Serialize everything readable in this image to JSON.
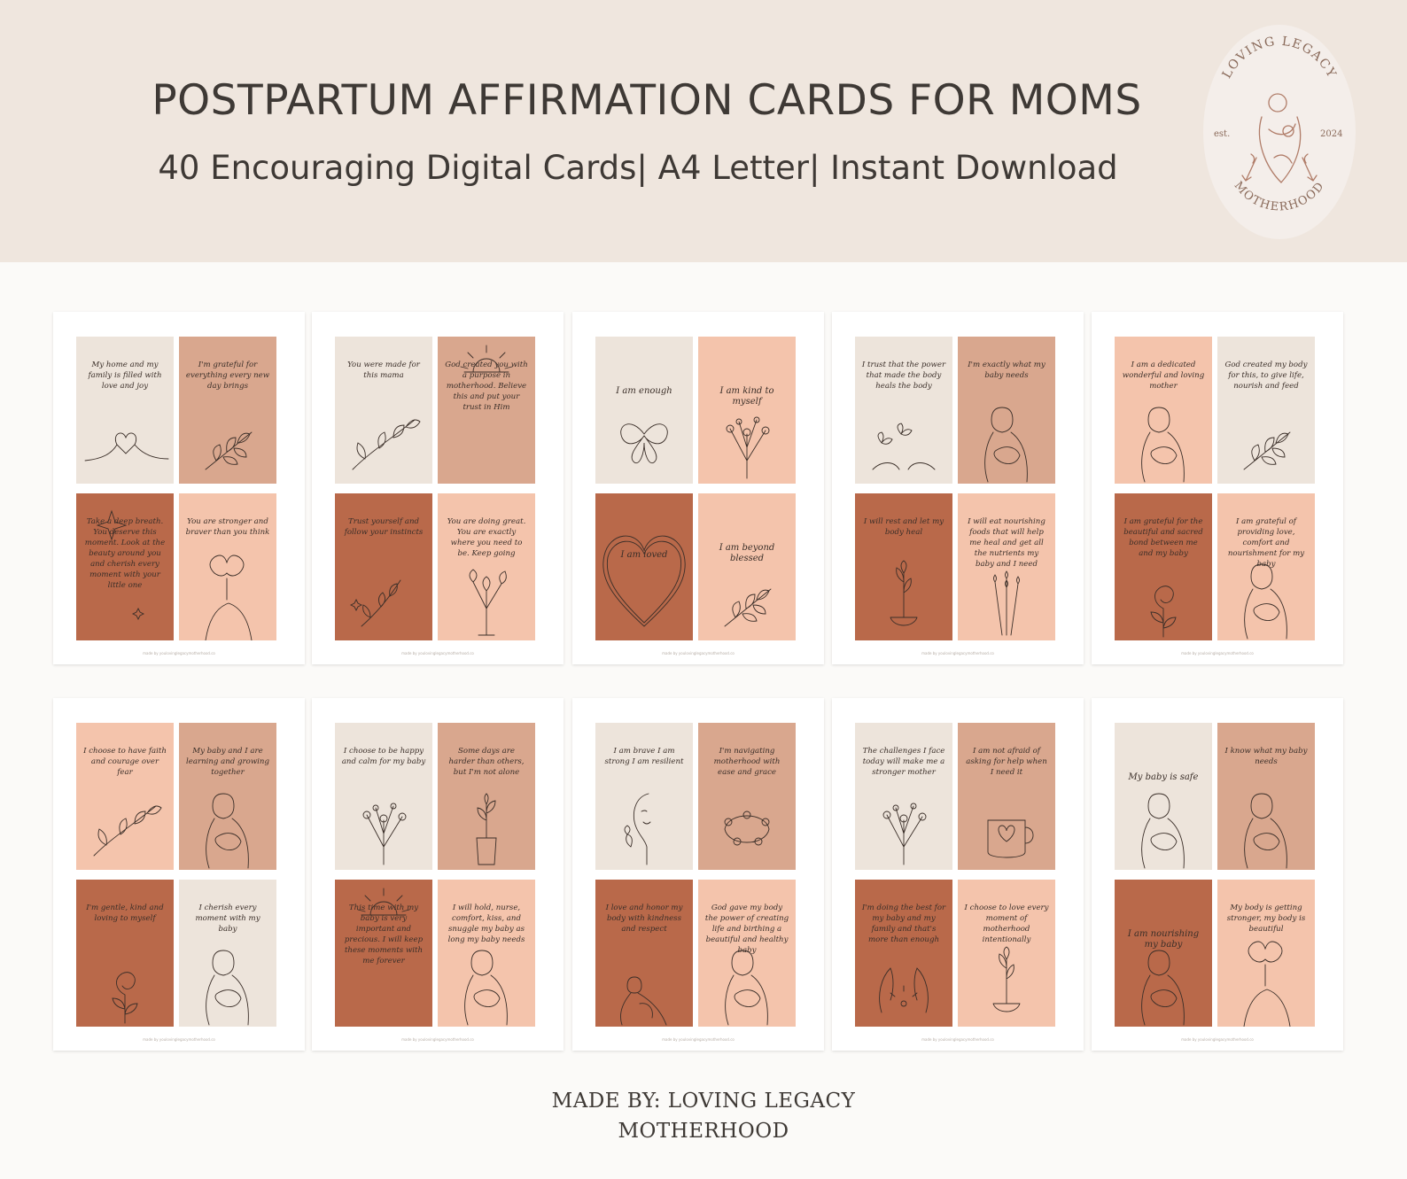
{
  "header": {
    "title": "POSTPARTUM AFFIRMATION CARDS FOR MOMS",
    "subtitle": "40 Encouraging Digital Cards| A4 Letter| Instant Download"
  },
  "logo": {
    "top_text": "LOVING LEGACY",
    "bottom_text": "MOTHERHOOD",
    "left_text": "est.",
    "right_text": "2024"
  },
  "colors": {
    "cream": "#ede4db",
    "tan": "#d9a78e",
    "peach": "#f4c4ac",
    "terracotta": "#b9694a"
  },
  "sheets": [
    {
      "cards": [
        {
          "text": "My home and my family is filled with love and joy",
          "color": "cream",
          "icon": "heart-line-icon"
        },
        {
          "text": "I'm grateful for everything every new day brings",
          "color": "tan",
          "icon": "leaf-branch-icon"
        },
        {
          "text": "Take a deep breath. You deserve this moment. Look at the beauty around you and cherish every moment with your little one",
          "color": "terracotta",
          "icon": "sparkle-icon"
        },
        {
          "text": "You are stronger and braver than you think",
          "color": "peach",
          "icon": "woman-flower-icon"
        }
      ]
    },
    {
      "cards": [
        {
          "text": "You were made for this mama",
          "color": "cream",
          "icon": "branch-icon"
        },
        {
          "text": "God created you with a purpose in motherhood. Believe this and put your trust in Him",
          "color": "tan",
          "icon": "sun-icon"
        },
        {
          "text": "Trust yourself and follow your instincts",
          "color": "terracotta",
          "icon": "sprig-icon"
        },
        {
          "text": "You are doing great. You are exactly where you need to be. Keep going",
          "color": "peach",
          "icon": "flower-bouquet-icon"
        }
      ]
    },
    {
      "cards": [
        {
          "text": "I am enough",
          "color": "cream",
          "icon": "butterfly-icon"
        },
        {
          "text": "I am kind to myself",
          "color": "peach",
          "icon": "wildflower-icon"
        },
        {
          "text": "I am loved",
          "color": "terracotta",
          "icon": "heart-outline-icon"
        },
        {
          "text": "I am beyond blessed",
          "color": "peach",
          "icon": "leaf-branch-icon"
        }
      ]
    },
    {
      "cards": [
        {
          "text": "I trust that the power that made the body heals the body",
          "color": "cream",
          "icon": "butterflies-icon"
        },
        {
          "text": "I'm exactly what my baby needs",
          "color": "tan",
          "icon": "mother-baby-icon"
        },
        {
          "text": "I will rest and let my body heal",
          "color": "terracotta",
          "icon": "hand-flower-icon"
        },
        {
          "text": "I will eat nourishing foods that will help me heal and get all the nutrients my baby and I need",
          "color": "peach",
          "icon": "lavender-icon"
        }
      ]
    },
    {
      "cards": [
        {
          "text": "I am a dedicated wonderful and loving mother",
          "color": "peach",
          "icon": "mother-baby-icon"
        },
        {
          "text": "God created my body for this, to give life, nourish and feed",
          "color": "cream",
          "icon": "leaf-branch-icon"
        },
        {
          "text": "I am grateful for the beautiful and sacred bond between me and my baby",
          "color": "terracotta",
          "icon": "rose-icon"
        },
        {
          "text": "I am grateful of providing love, comfort and nourishment for my baby",
          "color": "peach",
          "icon": "mother-baby-icon"
        }
      ]
    },
    {
      "cards": [
        {
          "text": "I choose to have faith and courage over fear",
          "color": "peach",
          "icon": "branch-icon"
        },
        {
          "text": "My baby and I are learning and growing together",
          "color": "tan",
          "icon": "mother-baby-icon"
        },
        {
          "text": "I'm gentle, kind and loving to myself",
          "color": "terracotta",
          "icon": "rose-icon"
        },
        {
          "text": "I cherish every moment with my baby",
          "color": "cream",
          "icon": "mother-baby-icon"
        }
      ]
    },
    {
      "cards": [
        {
          "text": "I choose to be happy and calm for my baby",
          "color": "cream",
          "icon": "wildflower-icon"
        },
        {
          "text": "Some days are harder than others, but I'm not alone",
          "color": "tan",
          "icon": "vase-icon"
        },
        {
          "text": "This time with my baby is very important and precious. I will keep these moments with me forever",
          "color": "terracotta",
          "icon": "sun-icon"
        },
        {
          "text": "I will hold, nurse, comfort, kiss, and snuggle my baby as long my baby needs",
          "color": "peach",
          "icon": "mother-baby-icon"
        }
      ]
    },
    {
      "cards": [
        {
          "text": "I am brave I am strong I am resilient",
          "color": "cream",
          "icon": "face-line-icon"
        },
        {
          "text": "I'm navigating motherhood with ease and grace",
          "color": "tan",
          "icon": "flower-wreath-icon"
        },
        {
          "text": "I love and honor my body with kindness and respect",
          "color": "terracotta",
          "icon": "woman-line-icon"
        },
        {
          "text": "God gave my body the power of creating life and birthing a beautiful and healthy baby",
          "color": "peach",
          "icon": "mother-baby-icon"
        }
      ]
    },
    {
      "cards": [
        {
          "text": "The challenges I face today will make me a stronger mother",
          "color": "cream",
          "icon": "wildflower-icon"
        },
        {
          "text": "I am not afraid of asking for help when I need it",
          "color": "tan",
          "icon": "mug-heart-icon"
        },
        {
          "text": "I'm doing the best for my baby and my family and that's more than enough",
          "color": "terracotta",
          "icon": "hands-icon"
        },
        {
          "text": "I choose to love every moment of motherhood intentionally",
          "color": "peach",
          "icon": "hand-flower-icon"
        }
      ]
    },
    {
      "cards": [
        {
          "text": "My baby is safe",
          "color": "cream",
          "icon": "mother-baby-icon"
        },
        {
          "text": "I know what my baby needs",
          "color": "tan",
          "icon": "mother-baby-icon"
        },
        {
          "text": "I am nourishing my baby",
          "color": "terracotta",
          "icon": "mother-baby-icon"
        },
        {
          "text": "My body is getting stronger, my body is beautiful",
          "color": "peach",
          "icon": "woman-flower-icon"
        }
      ]
    }
  ],
  "sheet_footer": "made by youlovinglegacymotherhood.co",
  "footer": {
    "line1": "MADE BY: LOVING LEGACY",
    "line2": "MOTHERHOOD"
  }
}
